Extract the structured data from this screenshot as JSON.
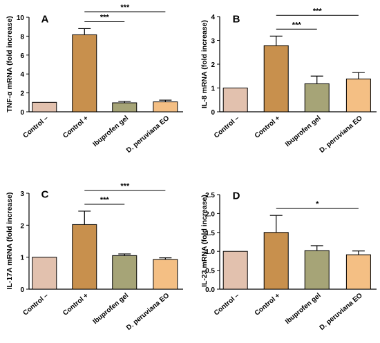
{
  "chart_data": [
    {
      "type": "bar",
      "panel_label": "A",
      "ylabel": "TNF-α mRNA (fold increase)",
      "categories": [
        "Control –",
        "Control +",
        "Ibuprofen gel",
        "D. peruviana EO"
      ],
      "values": [
        1.0,
        8.15,
        0.95,
        1.05
      ],
      "errors": [
        0.0,
        0.65,
        0.15,
        0.18
      ],
      "ylim": [
        0,
        10
      ],
      "yticks": [
        "0",
        "2",
        "4",
        "6",
        "8",
        "10"
      ],
      "significance": [
        {
          "from": 1,
          "to": 2,
          "label": "***"
        },
        {
          "from": 1,
          "to": 3,
          "label": "***"
        }
      ]
    },
    {
      "type": "bar",
      "panel_label": "B",
      "ylabel": "IL-8 mRNA (fold increase)",
      "categories": [
        "Control –",
        "Control +",
        "Ibuprofen gel",
        "D. peruviana EO"
      ],
      "values": [
        1.0,
        2.78,
        1.18,
        1.38
      ],
      "errors": [
        0.0,
        0.4,
        0.32,
        0.27
      ],
      "ylim": [
        0,
        4
      ],
      "yticks": [
        "0",
        "1",
        "2",
        "3",
        "4"
      ],
      "significance": [
        {
          "from": 1,
          "to": 2,
          "label": "***"
        },
        {
          "from": 1,
          "to": 3,
          "label": "***"
        }
      ]
    },
    {
      "type": "bar",
      "panel_label": "C",
      "ylabel": "IL-17A mRNA (fold increase)",
      "categories": [
        "Control –",
        "Control +",
        "Ibuprofen gel",
        "D. peruviana EO"
      ],
      "values": [
        1.0,
        2.02,
        1.05,
        0.93
      ],
      "errors": [
        0.0,
        0.42,
        0.05,
        0.05
      ],
      "ylim": [
        0,
        3
      ],
      "yticks": [
        "0",
        "1",
        "2",
        "3"
      ],
      "significance": [
        {
          "from": 1,
          "to": 2,
          "label": "***"
        },
        {
          "from": 1,
          "to": 3,
          "label": "***"
        }
      ]
    },
    {
      "type": "bar",
      "panel_label": "D",
      "ylabel": "IL-23 mRNA (fold increase)",
      "categories": [
        "Control –",
        "Control +",
        "Ibuprofen gel",
        "D. peruviana EO"
      ],
      "values": [
        1.0,
        1.5,
        1.02,
        0.91
      ],
      "errors": [
        0.0,
        0.45,
        0.13,
        0.1
      ],
      "ylim": [
        0,
        2.5
      ],
      "yticks": [
        "0.0",
        "0.5",
        "1.0",
        "1.5",
        "2.0",
        "2.5"
      ],
      "significance": [
        {
          "from": 1,
          "to": 3,
          "label": "*"
        }
      ]
    }
  ],
  "colors": {
    "bars": [
      "#e2c1ae",
      "#c8904d",
      "#a6a477",
      "#f4bf84"
    ],
    "outline": "#000000"
  }
}
